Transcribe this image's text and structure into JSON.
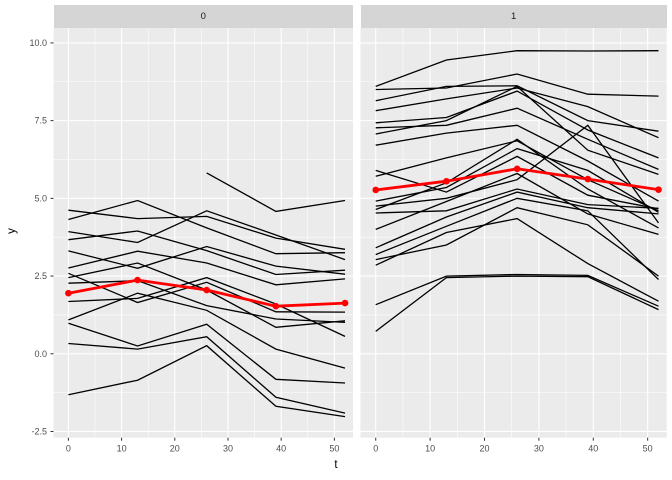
{
  "figure": {
    "background": "#ffffff",
    "panel_background": "#ebebeb",
    "strip_background": "#d5d5d5",
    "grid_color": "#ffffff",
    "tick_text_color": "#4d4d4d",
    "tick_mark_color": "#333333",
    "trajectory_color": "#000000",
    "mean_color": "#ff0000"
  },
  "chart_data": {
    "type": "line",
    "title": "",
    "xlabel": "t",
    "ylabel": "y",
    "x": [
      0,
      13,
      26,
      39,
      52
    ],
    "x_tick_values": [
      0,
      10,
      20,
      30,
      40,
      50
    ],
    "x_tick_labels": [
      "0",
      "10",
      "20",
      "30",
      "40",
      "50"
    ],
    "y_tick_values": [
      10,
      7.5,
      5,
      2.5,
      0,
      -2.5
    ],
    "y_tick_labels": [
      "10.0",
      "7.5",
      "5.0",
      "2.5",
      "0.0",
      "-2.5"
    ],
    "x_minor_values": [
      5,
      15,
      25,
      35,
      45
    ],
    "y_minor_values": [
      8.75,
      6.25,
      3.75,
      1.25,
      -1.25
    ],
    "xlim": [
      -2.8,
      53.5
    ],
    "ylim": [
      -2.7,
      10.48
    ],
    "grid": true,
    "legend": "none",
    "facets": [
      {
        "label": "0",
        "mean_series": {
          "name": "mean",
          "values": [
            1.95,
            2.37,
            2.05,
            1.53,
            1.63
          ]
        },
        "series": [
          {
            "values": [
              4.62,
              4.35,
              4.42,
              3.72,
              3.36
            ]
          },
          {
            "values": [
              4.32,
              4.93,
              4.05,
              3.22,
              3.25
            ]
          },
          {
            "values": [
              3.93,
              3.58,
              4.6,
              3.82,
              3.03
            ]
          },
          {
            "values": [
              3.67,
              3.95,
              3.32,
              2.55,
              2.69
            ]
          },
          {
            "values": [
              3.31,
              2.75,
              3.45,
              2.82,
              2.56
            ]
          },
          {
            "values": [
              2.76,
              3.3,
              2.92,
              2.22,
              2.41
            ]
          },
          {
            "values": [
              2.59,
              1.65,
              2.3,
              1.35,
              1.34
            ]
          },
          {
            "values": [
              2.45,
              2.92,
              2.05,
              0.85,
              1.06
            ]
          },
          {
            "values": [
              2.27,
              2.35,
              1.55,
              1.12,
              1.01
            ]
          },
          {
            "values": [
              1.68,
              1.78,
              2.45,
              1.6,
              0.56
            ]
          },
          {
            "values": [
              1.09,
              1.95,
              1.4,
              0.15,
              -0.46
            ]
          },
          {
            "values": [
              0.98,
              0.25,
              0.95,
              -0.82,
              -0.94
            ]
          },
          {
            "values": [
              0.33,
              0.15,
              0.55,
              -1.4,
              -1.91
            ]
          },
          {
            "values": [
              -1.32,
              -0.85,
              0.26,
              -1.69,
              -2.02
            ]
          },
          {
            "values": [
              null,
              null,
              5.82,
              4.58,
              4.93
            ]
          }
        ]
      },
      {
        "label": "1",
        "mean_series": {
          "name": "mean",
          "values": [
            5.27,
            5.55,
            5.95,
            5.62,
            5.28
          ]
        },
        "series": [
          {
            "values": [
              8.6,
              9.45,
              9.75,
              9.74,
              9.75
            ]
          },
          {
            "values": [
              8.5,
              8.55,
              9.0,
              8.35,
              8.29
            ]
          },
          {
            "values": [
              8.14,
              8.6,
              8.62,
              7.5,
              7.16
            ]
          },
          {
            "values": [
              7.82,
              8.2,
              8.55,
              7.95,
              6.95
            ]
          },
          {
            "values": [
              7.43,
              7.6,
              8.45,
              7.2,
              6.3
            ]
          },
          {
            "values": [
              7.27,
              7.35,
              7.9,
              6.9,
              5.93
            ]
          },
          {
            "values": [
              7.07,
              7.5,
              8.6,
              6.55,
              5.77
            ]
          },
          {
            "values": [
              6.71,
              7.1,
              7.35,
              6.2,
              4.91
            ]
          },
          {
            "values": [
              5.9,
              5.2,
              6.35,
              5.1,
              4.66
            ]
          },
          {
            "values": [
              5.71,
              6.3,
              6.85,
              5.6,
              4.6
            ]
          },
          {
            "values": [
              4.91,
              5.35,
              6.6,
              5.9,
              4.55
            ]
          },
          {
            "values": [
              4.75,
              5.0,
              5.6,
              7.35,
              4.21
            ]
          },
          {
            "values": [
              4.64,
              5.5,
              6.9,
              5.3,
              4.05
            ]
          },
          {
            "values": [
              4.53,
              4.6,
              5.3,
              4.8,
              4.68
            ]
          },
          {
            "values": [
              4.0,
              4.9,
              5.8,
              4.5,
              3.84
            ]
          },
          {
            "values": [
              3.41,
              4.4,
              5.2,
              4.7,
              4.5
            ]
          },
          {
            "values": [
              3.19,
              4.1,
              5.0,
              4.6,
              2.39
            ]
          },
          {
            "values": [
              3.03,
              3.5,
              4.7,
              4.15,
              2.5
            ]
          },
          {
            "values": [
              2.85,
              3.9,
              4.35,
              2.9,
              1.69
            ]
          },
          {
            "values": [
              1.58,
              2.5,
              2.55,
              2.52,
              1.53
            ]
          },
          {
            "values": [
              0.72,
              2.45,
              2.5,
              2.48,
              1.42
            ]
          }
        ]
      }
    ]
  }
}
